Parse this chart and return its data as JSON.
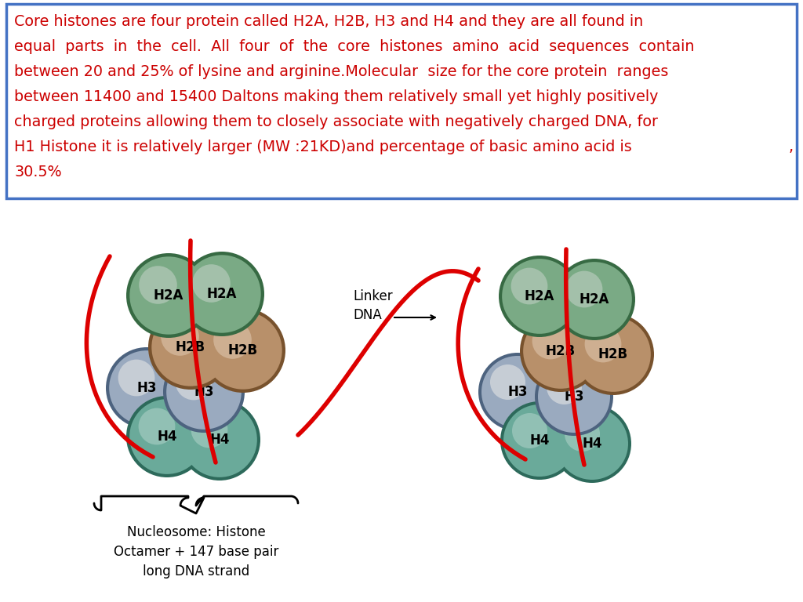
{
  "text_color": "#cc0000",
  "border_color": "#4472c4",
  "bg_color": "#ffffff",
  "font_size": 13.8,
  "background_color": "#ffffff",
  "nucleosome_label": "Nucleosome: Histone\nOctamer + 147 base pair\nlong DNA strand",
  "linker_dna_label": "Linker\nDNA",
  "h2a_color": "#7aaa85",
  "h2b_color": "#b8906a",
  "h3_color": "#9aaabf",
  "h4_color": "#6aaa9a",
  "h2a_dark": "#5a8a68",
  "h2b_dark": "#9a7050",
  "h3_dark": "#7a8a9f",
  "h4_dark": "#4a8a7a",
  "dna_color": "#dd0000",
  "text_lines": [
    "Core histones are four protein called H2A, H2B, H3 and H4 and they are all found in",
    "equal  parts  in  the  cell.  All  four  of  the  core  histones  amino  acid  sequences  contain",
    "between 20 and 25% of lysine and arginine.Molecular  size for the core protein  ranges",
    "between 11400 and 15400 Daltons making them relatively small yet highly positively",
    "charged proteins allowing them to closely associate with negatively charged DNA, for",
    "H1 Histone it is relatively larger (MW :21KD)and percentage of basic amino acid is",
    "30.5%"
  ]
}
